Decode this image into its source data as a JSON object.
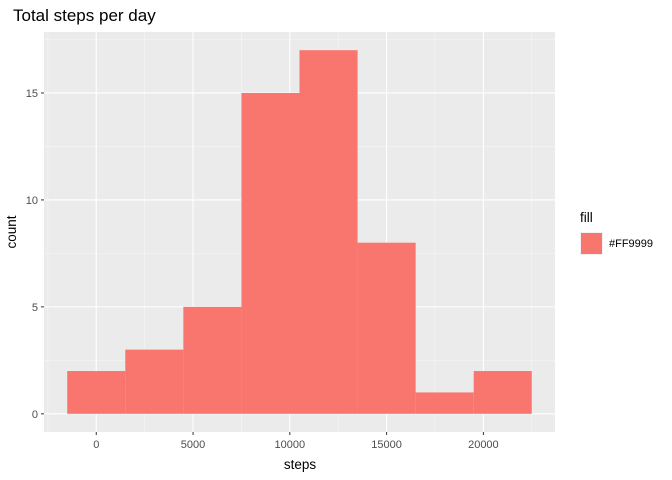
{
  "chart_data": {
    "type": "bar",
    "title": "Total steps per day",
    "xlabel": "steps",
    "ylabel": "count",
    "bin_width": 3000,
    "bins": [
      {
        "x0": -1500,
        "x1": 1500,
        "count": 2
      },
      {
        "x0": 1500,
        "x1": 4500,
        "count": 3
      },
      {
        "x0": 4500,
        "x1": 7500,
        "count": 5
      },
      {
        "x0": 7500,
        "x1": 10500,
        "count": 15
      },
      {
        "x0": 10500,
        "x1": 13500,
        "count": 17
      },
      {
        "x0": 13500,
        "x1": 16500,
        "count": 8
      },
      {
        "x0": 16500,
        "x1": 19500,
        "count": 1
      },
      {
        "x0": 19500,
        "x1": 22500,
        "count": 2
      }
    ],
    "xlim": [
      -2700,
      23700
    ],
    "ylim": [
      -0.85,
      17.85
    ],
    "x_ticks": [
      0,
      5000,
      10000,
      15000,
      20000
    ],
    "x_tick_labels": [
      "0",
      "5000",
      "10000",
      "15000",
      "20000"
    ],
    "x_minor_ticks": [
      -2500,
      2500,
      7500,
      12500,
      17500,
      22500
    ],
    "y_ticks": [
      0,
      5,
      10,
      15
    ],
    "y_tick_labels": [
      "0",
      "5",
      "10",
      "15"
    ],
    "y_minor_ticks": [
      2.5,
      7.5,
      12.5,
      17.5
    ],
    "grid": true,
    "legend": {
      "position": "right",
      "title": "fill",
      "entries": [
        {
          "label": "#FF9999",
          "color": "#F8766D"
        }
      ]
    },
    "colors": {
      "bar_fill": "#F8766D",
      "panel_background": "#EBEBEB",
      "grid_major": "#FFFFFF",
      "grid_minor": "#F7F7F7"
    }
  }
}
